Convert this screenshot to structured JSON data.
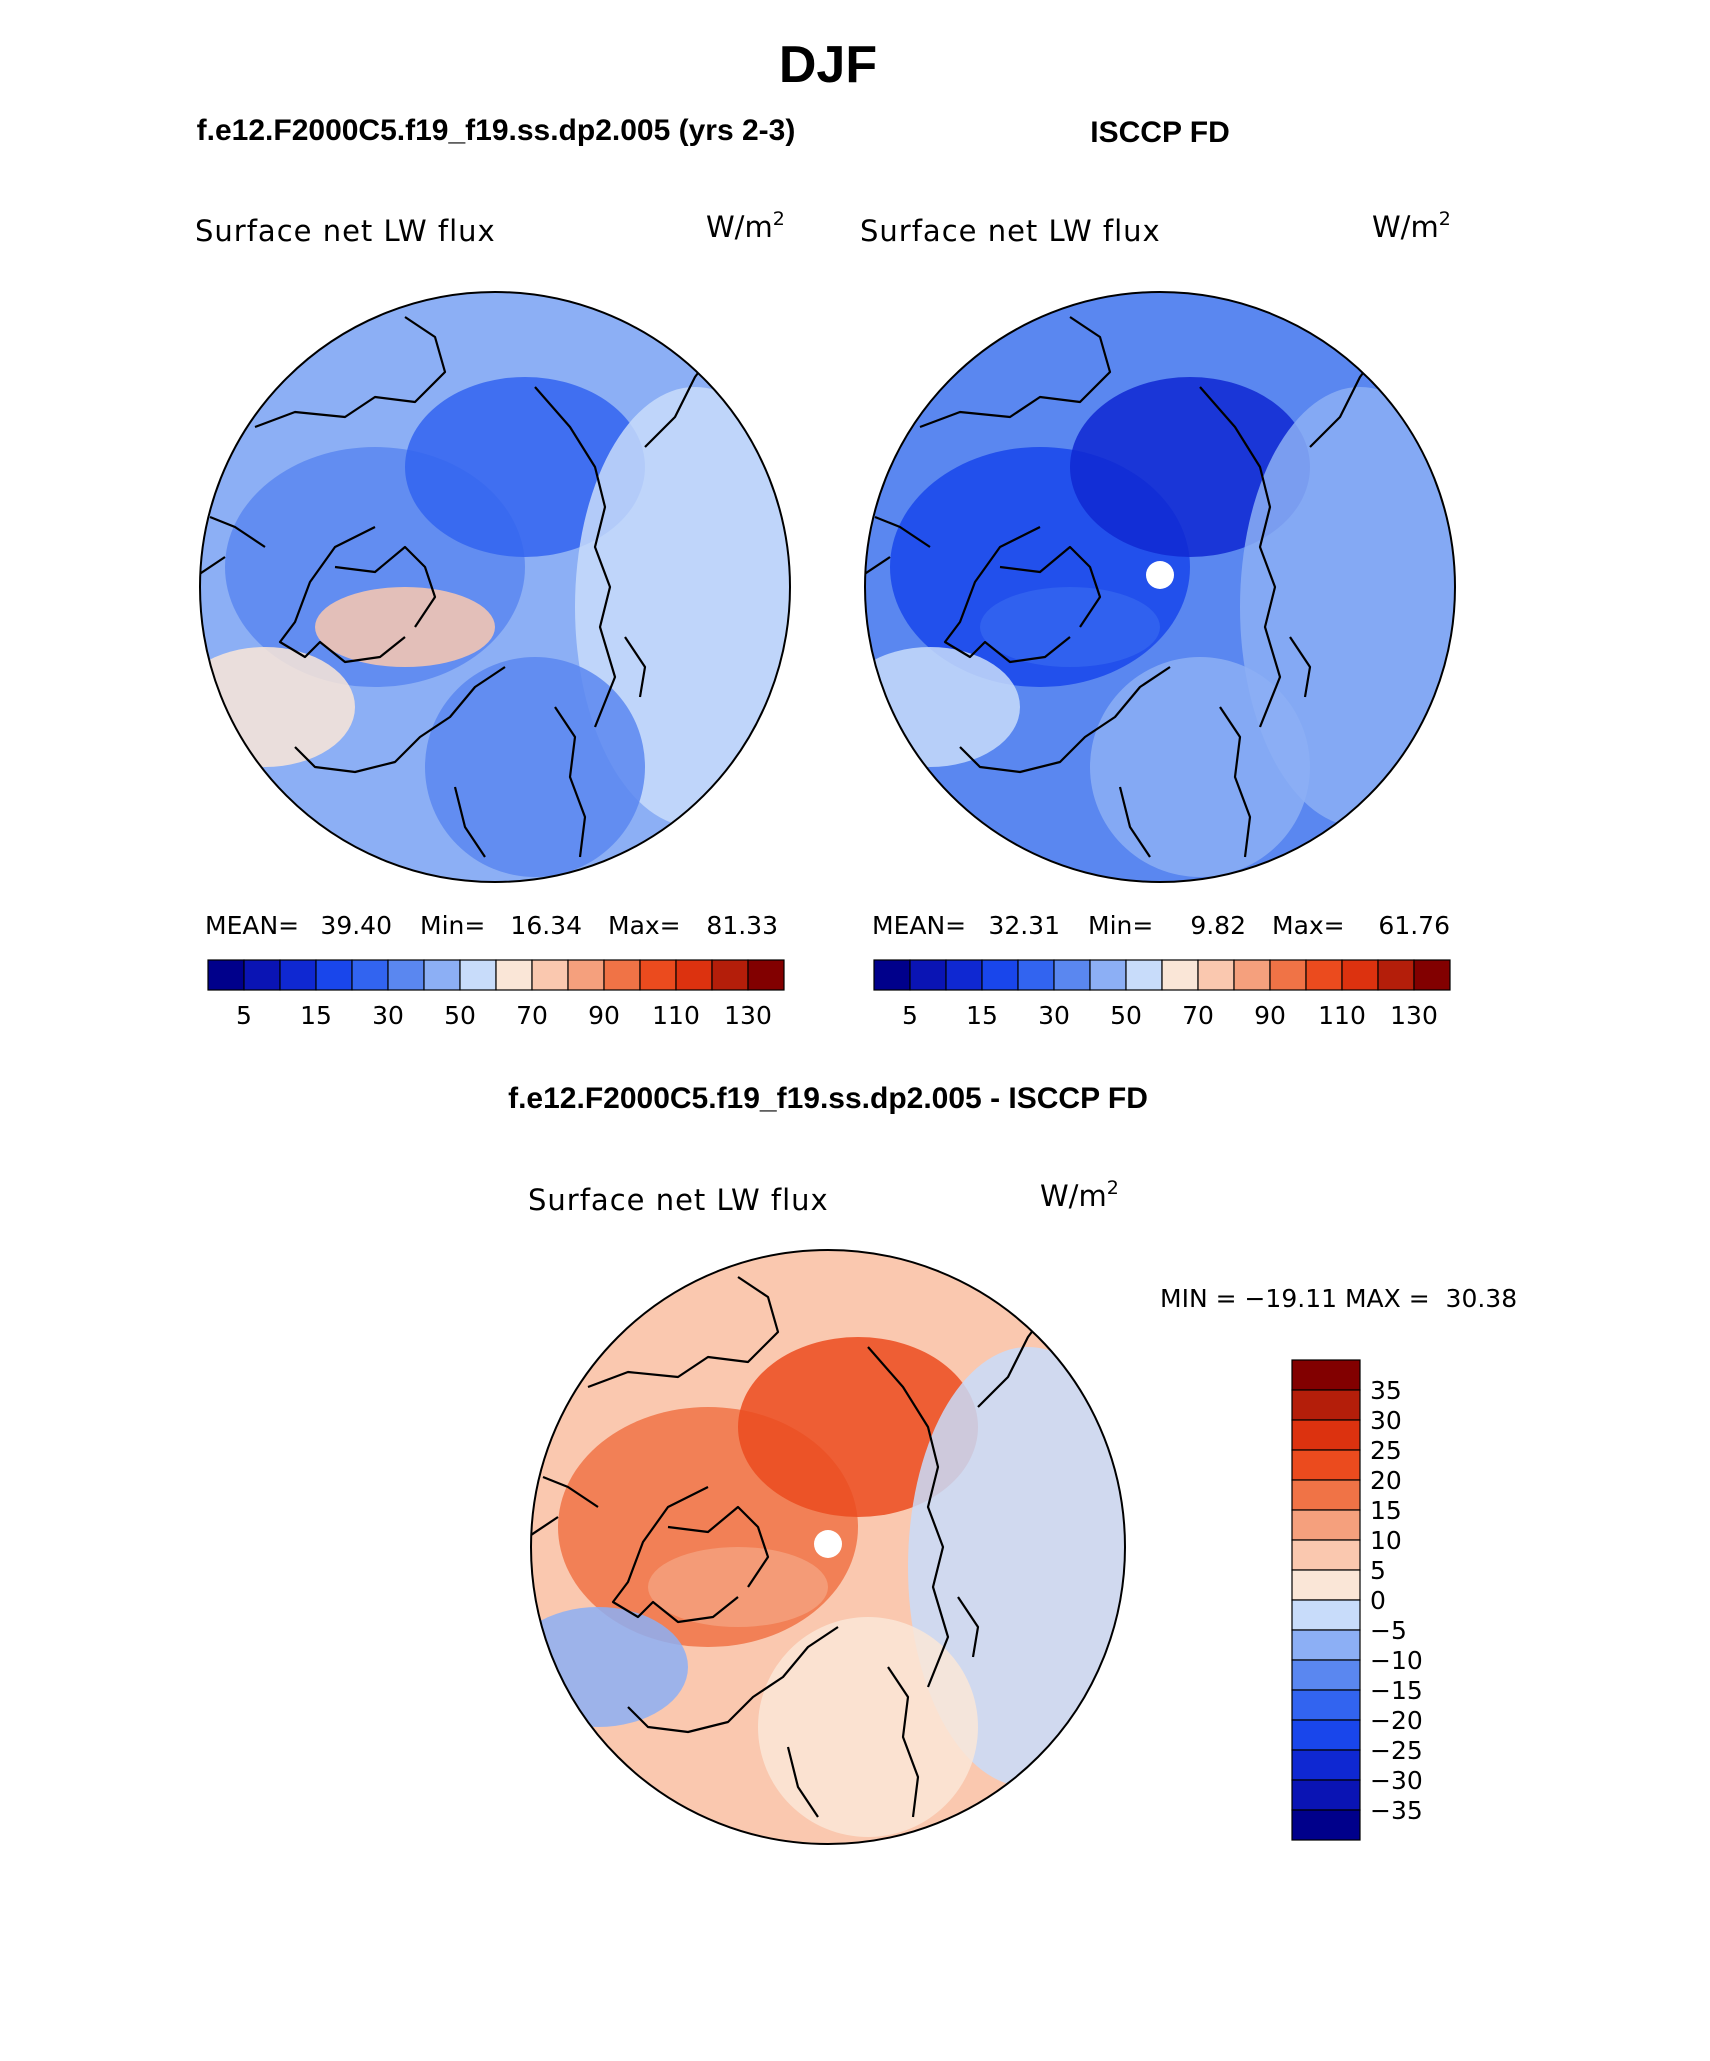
{
  "figure_title": "DJF",
  "panels": [
    {
      "id": "model",
      "heading": "f.e12.F2000C5.f19_f19.ss.dp2.005 (yrs 2-3)",
      "variable": "Surface net LW flux",
      "units_base": "W/m",
      "units_exp": "2",
      "stats": {
        "mean_label": "MEAN=",
        "mean": "39.40",
        "min_label": "Min=",
        "min": "16.34",
        "max_label": "Max=",
        "max": "81.33"
      },
      "pole_hole": false
    },
    {
      "id": "obs",
      "heading": "ISCCP FD",
      "variable": "Surface net LW flux",
      "units_base": "W/m",
      "units_exp": "2",
      "stats": {
        "mean_label": "MEAN=",
        "mean": "32.31",
        "min_label": "Min=",
        "min": "9.82",
        "max_label": "Max=",
        "max": "61.76"
      },
      "pole_hole": true
    },
    {
      "id": "diff",
      "heading": "f.e12.F2000C5.f19_f19.ss.dp2.005 - ISCCP FD",
      "variable": "Surface net LW flux",
      "units_base": "W/m",
      "units_exp": "2",
      "minmax_text": "MIN = −19.11 MAX =  30.38",
      "pole_hole": true
    }
  ],
  "colorbar_abs": {
    "colors": [
      "#00008b",
      "#0a14b4",
      "#0f28d2",
      "#1946eb",
      "#3264f0",
      "#5a87f0",
      "#8caff5",
      "#c8dcfa",
      "#fae6d7",
      "#fac8af",
      "#f5a07d",
      "#f07346",
      "#eb4b1e",
      "#dc320f",
      "#b41e0a",
      "#820000"
    ],
    "labels": [
      "5",
      "15",
      "30",
      "50",
      "70",
      "90",
      "110",
      "130"
    ]
  },
  "colorbar_diff": {
    "colors": [
      "#00008b",
      "#0a14b4",
      "#0f28d2",
      "#1946eb",
      "#3264f0",
      "#5a87f0",
      "#8caff5",
      "#c8dcfa",
      "#fae6d7",
      "#fac8af",
      "#f5a07d",
      "#f07346",
      "#eb4b1e",
      "#dc320f",
      "#b41e0a",
      "#820000"
    ],
    "labels": [
      "35",
      "30",
      "25",
      "20",
      "15",
      "10",
      "5",
      "0",
      "−5",
      "−10",
      "−15",
      "−20",
      "−25",
      "−30",
      "−35"
    ]
  },
  "map_palettes": {
    "model": {
      "base": "#8caff5",
      "blobs": [
        "#5a87f0",
        "#3264f0",
        "#c8dcfa",
        "#fae6d7",
        "#fac8af",
        "#5a87f0"
      ]
    },
    "obs": {
      "base": "#5a87f0",
      "blobs": [
        "#1946eb",
        "#0f28d2",
        "#8caff5",
        "#c8dcfa",
        "#3264f0",
        "#8caff5"
      ]
    },
    "diff": {
      "base": "#fac8af",
      "blobs": [
        "#f07346",
        "#eb4b1e",
        "#c8dcfa",
        "#8caff5",
        "#f5a07d",
        "#fae6d7"
      ]
    }
  }
}
